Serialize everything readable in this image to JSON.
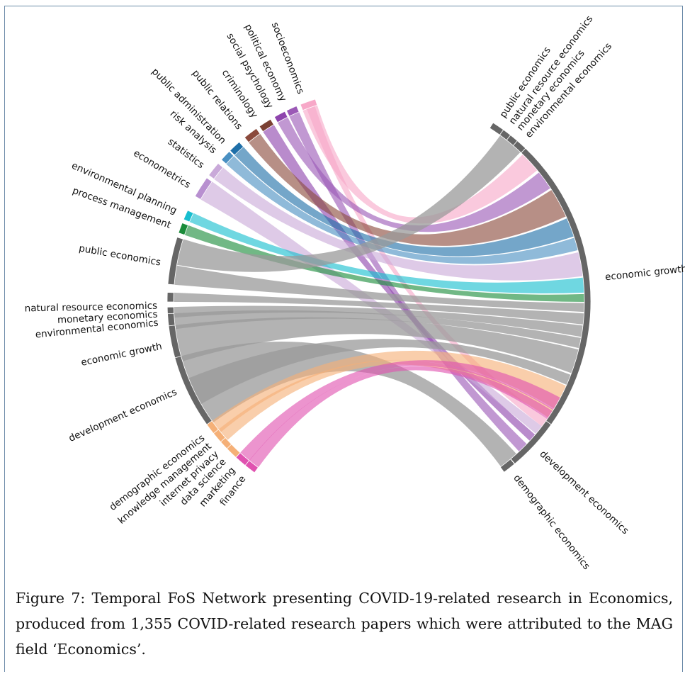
{
  "caption": "Figure 7: Temporal FoS Network presenting COVID-19-related research in Economics, produced from 1,355 COVID-related research papers which were attributed to the MAG field ‘Economics’.",
  "left_nodes": [
    {
      "label": "socioeconomics",
      "color": "#f7a8c8"
    },
    {
      "label": "political economy",
      "color": "#9b59b6"
    },
    {
      "label": "social psychology",
      "color": "#8e44ad"
    },
    {
      "label": "criminology",
      "color": "#7a4032"
    },
    {
      "label": "public relations",
      "color": "#8b4a3c"
    },
    {
      "label": "public administration",
      "color": "#1f6fa8"
    },
    {
      "label": "risk analysis",
      "color": "#4a90c2"
    },
    {
      "label": "statistics",
      "color": "#c9a9d9"
    },
    {
      "label": "econometrics",
      "color": "#b890d0"
    },
    {
      "label": "environmental planning",
      "color": "#17becf"
    },
    {
      "label": "process management",
      "color": "#1a8c3a"
    },
    {
      "label": "public economics",
      "color": "#666666"
    },
    {
      "label": "natural resource economics",
      "color": "#666666"
    },
    {
      "label": "monetary economics",
      "color": "#666666"
    },
    {
      "label": "environmental economics",
      "color": "#666666"
    },
    {
      "label": "economic growth",
      "color": "#666666"
    },
    {
      "label": "development economics",
      "color": "#666666"
    },
    {
      "label": "demographic economics",
      "color": "#f5b077"
    },
    {
      "label": "knowledge management",
      "color": "#f5b077"
    },
    {
      "label": "internet privacy",
      "color": "#f5b077"
    },
    {
      "label": "data science",
      "color": "#f5b077"
    },
    {
      "label": "marketing",
      "color": "#e052b0"
    },
    {
      "label": "finance",
      "color": "#e052b0"
    }
  ],
  "right_nodes": [
    {
      "label": "public economics",
      "color": "#666666"
    },
    {
      "label": "natural resource economics",
      "color": "#666666"
    },
    {
      "label": "monetary economics",
      "color": "#666666"
    },
    {
      "label": "environmental economics",
      "color": "#666666"
    },
    {
      "label": "economic growth",
      "color": "#666666"
    },
    {
      "label": "development economics",
      "color": "#666666"
    },
    {
      "label": "demographic economics",
      "color": "#666666"
    }
  ]
}
